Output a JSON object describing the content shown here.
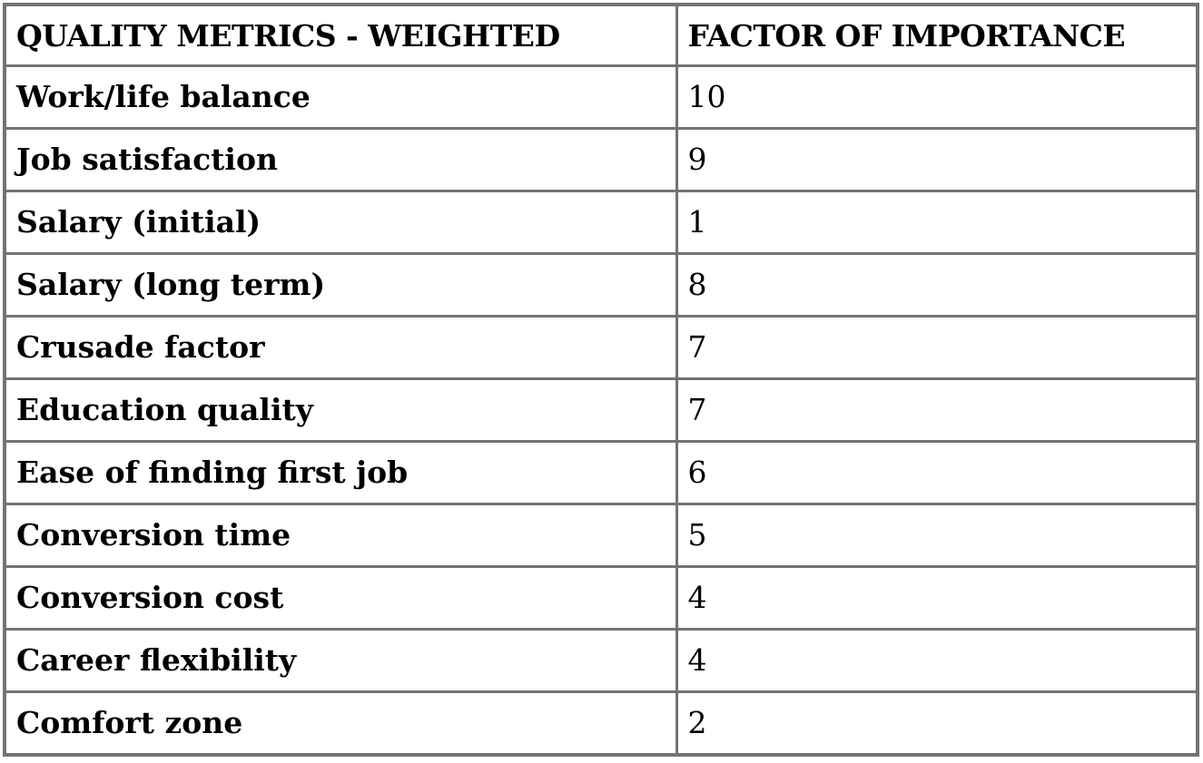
{
  "table": {
    "headers": [
      "QUALITY METRICS - WEIGHTED",
      "FACTOR OF IMPORTANCE"
    ],
    "rows": [
      {
        "metric": "Work/life balance",
        "factor": "10"
      },
      {
        "metric": "Job satisfaction",
        "factor": "9"
      },
      {
        "metric": "Salary (initial)",
        "factor": "1"
      },
      {
        "metric": "Salary (long term)",
        "factor": "8"
      },
      {
        "metric": "Crusade factor",
        "factor": "7"
      },
      {
        "metric": "Education quality",
        "factor": "7"
      },
      {
        "metric": "Ease of finding first job",
        "factor": "6"
      },
      {
        "metric": "Conversion time",
        "factor": "5"
      },
      {
        "metric": "Conversion cost",
        "factor": "4"
      },
      {
        "metric": "Career flexibility",
        "factor": "4"
      },
      {
        "metric": "Comfort zone",
        "factor": "2"
      }
    ]
  },
  "colors": {
    "border": "#737373",
    "text": "#000000",
    "background": "#ffffff"
  }
}
